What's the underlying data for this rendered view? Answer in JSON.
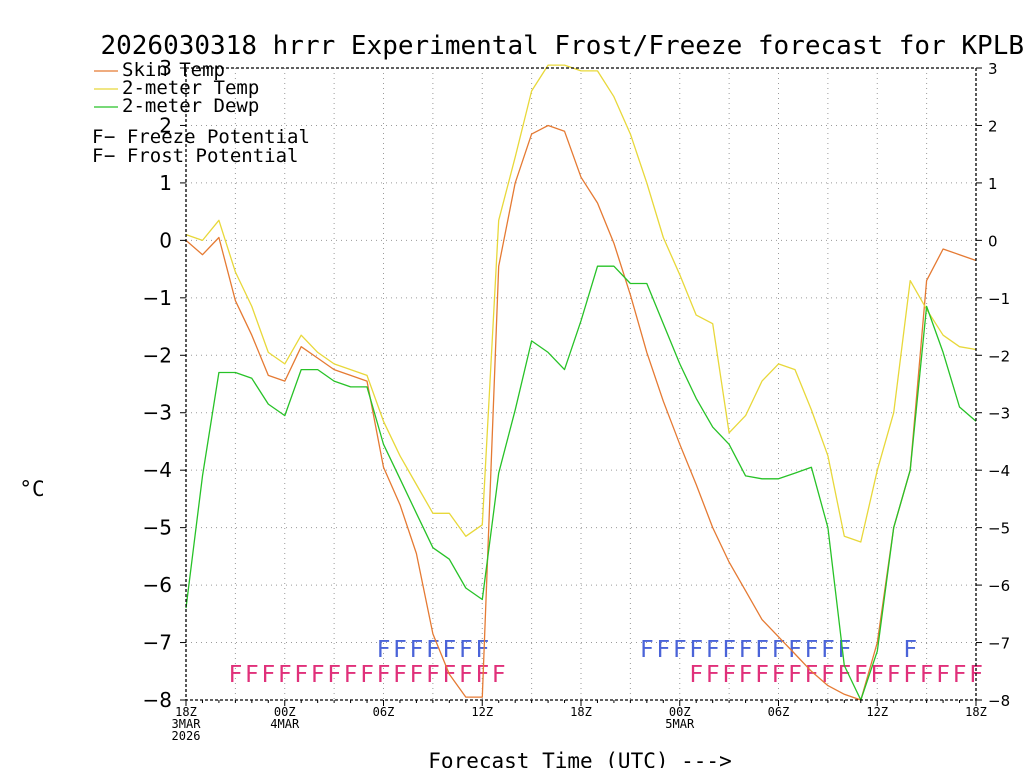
{
  "chart_data": {
    "type": "line",
    "title": "2026030318 hrrr Experimental Frost/Freeze forecast for KPLB",
    "xlabel": "Forecast Time (UTC) --->",
    "ylabel": "°C",
    "ylim": [
      -8,
      3
    ],
    "y_ticks": [
      3,
      2,
      1,
      0,
      -1,
      -2,
      -3,
      -4,
      -5,
      -6,
      -7,
      -8
    ],
    "y_tick_labels": [
      "3",
      "2",
      "1",
      "0",
      "−1",
      "−2",
      "−3",
      "−4",
      "−5",
      "−6",
      "−7",
      "−8"
    ],
    "right_tick_labels": [
      "3",
      "2",
      "1",
      "0",
      "−1",
      "−2",
      "−3",
      "−4",
      "−5",
      "−6",
      "−7",
      "−8"
    ],
    "xlim": [
      0,
      48
    ],
    "x_ticks": [
      {
        "x": 0,
        "lines": [
          "18Z",
          "3MAR",
          "2026"
        ]
      },
      {
        "x": 6,
        "lines": [
          "00Z",
          "4MAR"
        ]
      },
      {
        "x": 12,
        "lines": [
          "06Z"
        ]
      },
      {
        "x": 18,
        "lines": [
          "12Z"
        ]
      },
      {
        "x": 24,
        "lines": [
          "18Z"
        ]
      },
      {
        "x": 30,
        "lines": [
          "00Z",
          "5MAR"
        ]
      },
      {
        "x": 36,
        "lines": [
          "06Z"
        ]
      },
      {
        "x": 42,
        "lines": [
          "12Z"
        ]
      },
      {
        "x": 48,
        "lines": [
          "18Z"
        ]
      }
    ],
    "series": [
      {
        "name": "Skin Temp",
        "color": "#e57a33",
        "values": [
          0.0,
          -0.25,
          0.05,
          -1.05,
          -1.65,
          -2.35,
          -2.45,
          -1.85,
          -2.05,
          -2.25,
          -2.35,
          -2.45,
          -3.95,
          -4.6,
          -5.45,
          -6.85,
          -7.55,
          -7.95,
          -7.95,
          -0.45,
          1.0,
          1.85,
          2.0,
          1.9,
          1.1,
          0.65,
          -0.05,
          -0.95,
          -1.95,
          -2.8,
          -3.55,
          -4.25,
          -5.0,
          -5.6,
          -6.1,
          -6.6,
          -6.9,
          -7.2,
          -7.5,
          -7.75,
          -7.9,
          -8.0,
          -7.0,
          -5.0,
          -4.0,
          -0.7,
          -0.15,
          -0.25,
          -0.35
        ]
      },
      {
        "name": "2-meter Temp",
        "color": "#e8d83a",
        "values": [
          0.1,
          0.0,
          0.35,
          -0.55,
          -1.15,
          -1.95,
          -2.15,
          -1.65,
          -1.95,
          -2.15,
          -2.25,
          -2.35,
          -3.15,
          -3.75,
          -4.25,
          -4.75,
          -4.75,
          -5.15,
          -4.95,
          0.35,
          1.45,
          2.6,
          3.05,
          3.05,
          2.95,
          2.95,
          2.5,
          1.85,
          1.0,
          0.05,
          -0.6,
          -1.3,
          -1.45,
          -3.35,
          -3.05,
          -2.45,
          -2.15,
          -2.25,
          -2.95,
          -3.75,
          -5.15,
          -5.25,
          -4.0,
          -3.0,
          -0.7,
          -1.2,
          -1.65,
          -1.85,
          -1.9
        ]
      },
      {
        "name": "2-meter Dewp",
        "color": "#27c227",
        "values": [
          -6.4,
          -4.1,
          -2.3,
          -2.3,
          -2.4,
          -2.85,
          -3.05,
          -2.25,
          -2.25,
          -2.45,
          -2.55,
          -2.55,
          -3.55,
          -4.15,
          -4.75,
          -5.35,
          -5.55,
          -6.05,
          -6.25,
          -4.05,
          -2.95,
          -1.75,
          -1.95,
          -2.25,
          -1.4,
          -0.45,
          -0.45,
          -0.75,
          -0.75,
          -1.45,
          -2.15,
          -2.75,
          -3.25,
          -3.55,
          -4.1,
          -4.15,
          -4.15,
          -4.05,
          -3.95,
          -5.0,
          -7.4,
          -8.0,
          -7.15,
          -5.0,
          -4.0,
          -1.15,
          -1.95,
          -2.9,
          -3.15
        ]
      }
    ],
    "legend": [
      {
        "label": "Skin Temp",
        "color": "#e57a33"
      },
      {
        "label": "2-meter Temp",
        "color": "#e8d83a"
      },
      {
        "label": "2-meter Dewp",
        "color": "#27c227"
      }
    ],
    "flag_legend": [
      {
        "letter": "F",
        "label": " − Freeze Potential",
        "color": "#e0307a"
      },
      {
        "letter": "F",
        "label": " − Frost Potential",
        "color": "#4a63d8"
      }
    ],
    "frost_flags": [
      12,
      13,
      14,
      15,
      16,
      17,
      18,
      28,
      29,
      30,
      31,
      32,
      33,
      34,
      35,
      36,
      37,
      38,
      39,
      40,
      44
    ],
    "freeze_flags": [
      3,
      4,
      5,
      6,
      7,
      8,
      9,
      10,
      11,
      12,
      13,
      14,
      15,
      16,
      17,
      18,
      19,
      31,
      32,
      33,
      34,
      35,
      36,
      37,
      38,
      39,
      40,
      41,
      42,
      43,
      44,
      45,
      46,
      47,
      48
    ]
  },
  "colors": {
    "frost": "#4a63d8",
    "freeze": "#e0307a",
    "grid": "#9a9a9a"
  }
}
